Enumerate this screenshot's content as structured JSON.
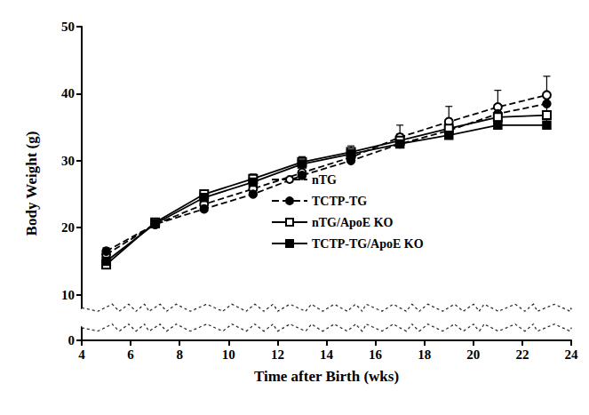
{
  "chart_data": {
    "type": "line",
    "x_label": "Time after Birth (wks)",
    "y_label": "Body Weight (g)",
    "xlim": [
      4,
      24
    ],
    "xticks": [
      4,
      6,
      8,
      10,
      12,
      14,
      16,
      18,
      20,
      22,
      24
    ],
    "ylim": [
      0,
      50
    ],
    "yticks": [
      0,
      10,
      20,
      30,
      40,
      50
    ],
    "grid": false,
    "legend": "center",
    "x": [
      5,
      7,
      9,
      11,
      13,
      15,
      17,
      19,
      21,
      23
    ],
    "series": [
      {
        "name": "nTG",
        "color": "#000000",
        "marker": "open_circle",
        "line_style": "dashed",
        "values": [
          16.0,
          20.5,
          23.5,
          25.8,
          28.2,
          30.5,
          33.5,
          35.8,
          38.0,
          39.8
        ],
        "errors": [
          0.6,
          0.5,
          0.7,
          0.9,
          1.0,
          1.3,
          1.8,
          2.3,
          2.5,
          2.8
        ]
      },
      {
        "name": "TCTP-TG",
        "color": "#000000",
        "marker": "circle",
        "line_style": "dashed",
        "values": [
          16.5,
          20.5,
          22.8,
          25.0,
          27.8,
          30.0,
          32.5,
          34.5,
          37.0,
          38.5
        ],
        "errors": [
          0.5,
          0.4,
          0.6,
          0.7,
          0.8,
          0.9,
          1.0,
          1.2,
          1.3,
          1.5
        ]
      },
      {
        "name": "nTG/ApoE KO",
        "color": "#000000",
        "marker": "open_square",
        "line_style": "solid",
        "values": [
          14.5,
          20.8,
          25.0,
          27.3,
          29.8,
          31.3,
          33.0,
          34.8,
          36.5,
          36.8
        ],
        "errors": [
          0.5,
          0.4,
          0.6,
          0.7,
          0.8,
          0.9,
          1.0,
          1.2,
          1.4,
          1.5
        ]
      },
      {
        "name": "TCTP-TG/ApoE KO",
        "color": "#000000",
        "marker": "square",
        "line_style": "solid",
        "values": [
          15.0,
          20.6,
          24.5,
          26.8,
          29.5,
          31.0,
          32.5,
          33.8,
          35.3,
          35.3
        ],
        "errors": [
          0.4,
          0.4,
          0.5,
          0.6,
          0.7,
          0.8,
          0.9,
          1.0,
          1.1,
          1.2
        ]
      }
    ]
  }
}
